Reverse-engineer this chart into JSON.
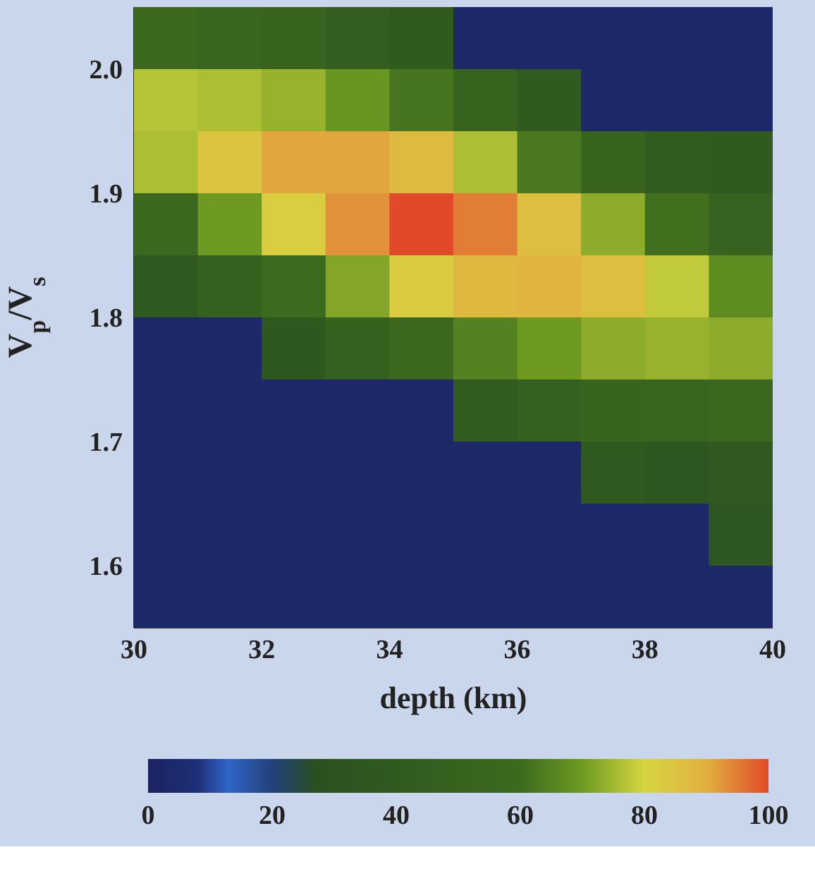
{
  "chart_data": {
    "type": "heatmap",
    "xlabel": "depth (km)",
    "ylabel": "V$_{p}$/V$_{s}$",
    "xlim": [
      30,
      40
    ],
    "xticks": [
      30,
      32,
      34,
      36,
      38,
      40
    ],
    "ylim": [
      1.55,
      2.05
    ],
    "yticks": [
      1.6,
      1.7,
      1.8,
      1.9,
      {
        "value": 2.0,
        "label": "2.0"
      }
    ],
    "clim": [
      0,
      100
    ],
    "cticks": [
      0,
      20,
      40,
      60,
      80,
      100
    ],
    "cells": [
      [
        58,
        55,
        51,
        45,
        40,
        3,
        3,
        3,
        3,
        3
      ],
      [
        77,
        76,
        74,
        69,
        62,
        51,
        40,
        3,
        3,
        3
      ],
      [
        76,
        85,
        91,
        91,
        87,
        76,
        63,
        52,
        41,
        40
      ],
      [
        58,
        70,
        82,
        93,
        100,
        95,
        86,
        73,
        61,
        50
      ],
      [
        38,
        48,
        60,
        72,
        83,
        88,
        89,
        86,
        78,
        67
      ],
      [
        3,
        3,
        37,
        48,
        58,
        65,
        70,
        73,
        74,
        73
      ],
      [
        3,
        3,
        3,
        3,
        3,
        41,
        47,
        52,
        55,
        58
      ],
      [
        3,
        3,
        3,
        3,
        3,
        3,
        3,
        38,
        35,
        39
      ],
      [
        3,
        3,
        3,
        3,
        3,
        3,
        3,
        3,
        3,
        35
      ],
      [
        3,
        3,
        3,
        3,
        3,
        3,
        3,
        3,
        3,
        3
      ]
    ]
  }
}
